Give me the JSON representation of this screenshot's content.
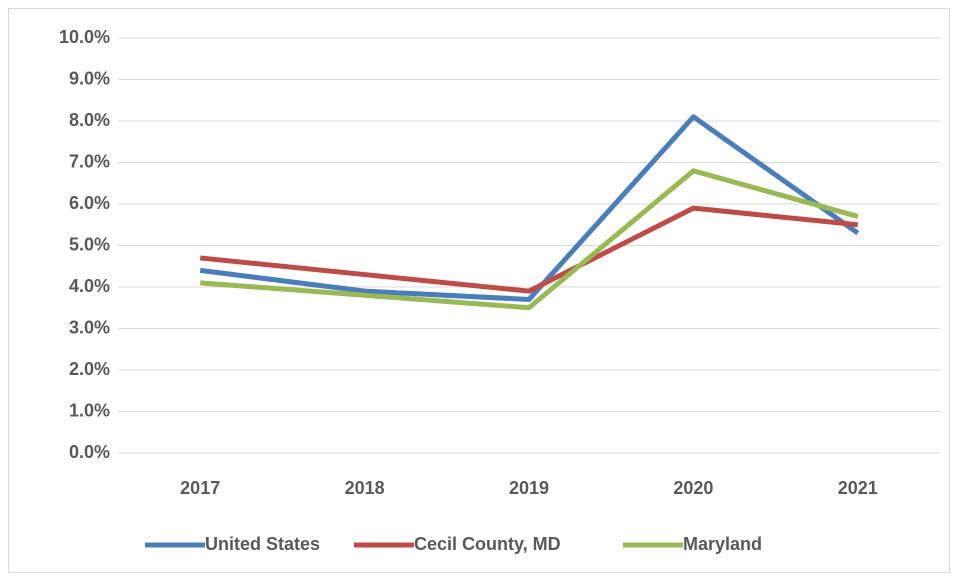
{
  "chart_data": {
    "type": "line",
    "categories": [
      "2017",
      "2018",
      "2019",
      "2020",
      "2021"
    ],
    "series": [
      {
        "name": "United States",
        "color": "#4a7ebb",
        "values": [
          4.4,
          3.9,
          3.7,
          8.1,
          5.3
        ]
      },
      {
        "name": "Cecil County, MD",
        "color": "#be4b48",
        "values": [
          4.7,
          4.3,
          3.9,
          5.9,
          5.5
        ]
      },
      {
        "name": "Maryland",
        "color": "#98b954",
        "values": [
          4.1,
          3.8,
          3.5,
          6.8,
          5.7
        ]
      }
    ],
    "ylim": [
      0,
      10
    ],
    "yticks": [
      {
        "value": 0,
        "label": "0.0%"
      },
      {
        "value": 1,
        "label": "1.0%"
      },
      {
        "value": 2,
        "label": "2.0%"
      },
      {
        "value": 3,
        "label": "3.0%"
      },
      {
        "value": 4,
        "label": "4.0%"
      },
      {
        "value": 5,
        "label": "5.0%"
      },
      {
        "value": 6,
        "label": "6.0%"
      },
      {
        "value": 7,
        "label": "7.0%"
      },
      {
        "value": 8,
        "label": "8.0%"
      },
      {
        "value": 9,
        "label": "9.0%"
      },
      {
        "value": 10,
        "label": "10.0%"
      }
    ],
    "grid": true,
    "legend": "bottom"
  }
}
